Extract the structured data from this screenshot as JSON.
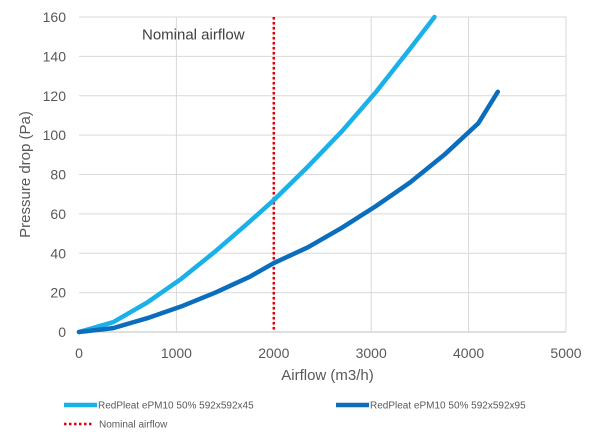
{
  "chart_data": {
    "type": "line",
    "xlabel": "Airflow (m3/h)",
    "ylabel": "Pressure drop (Pa)",
    "xlim": [
      0,
      5000
    ],
    "ylim": [
      0,
      160
    ],
    "xticks": [
      0,
      1000,
      2000,
      3000,
      4000,
      5000
    ],
    "yticks": [
      0,
      20,
      40,
      60,
      80,
      100,
      120,
      140,
      160
    ],
    "grid": "vertical and horizontal",
    "legend_position": "bottom",
    "series": [
      {
        "name": "RedPleat ePM10 50% 592x592x45",
        "color": "#1ab0ea",
        "style": "solid",
        "x": [
          0,
          350,
          700,
          1050,
          1400,
          1750,
          2000,
          2350,
          2700,
          3050,
          3400,
          3650
        ],
        "y": [
          0,
          5,
          15,
          27,
          41,
          56,
          67,
          84,
          102,
          122,
          144,
          160
        ]
      },
      {
        "name": "RedPleat ePM10 50% 592x592x95",
        "color": "#0b6ebd",
        "style": "solid",
        "x": [
          0,
          350,
          700,
          1050,
          1400,
          1750,
          2000,
          2350,
          2700,
          3050,
          3400,
          3750,
          4100,
          4300
        ],
        "y": [
          0,
          2,
          7,
          13,
          20,
          28,
          35,
          43,
          53,
          64,
          76,
          90,
          106,
          122
        ]
      }
    ],
    "reference_lines": [
      {
        "name": "Nominal airflow",
        "x": 2000,
        "color": "#e3000b",
        "style": "dotted"
      }
    ],
    "annotations": [
      {
        "text": "Nominal airflow",
        "x": 1000,
        "y": 151
      }
    ]
  }
}
